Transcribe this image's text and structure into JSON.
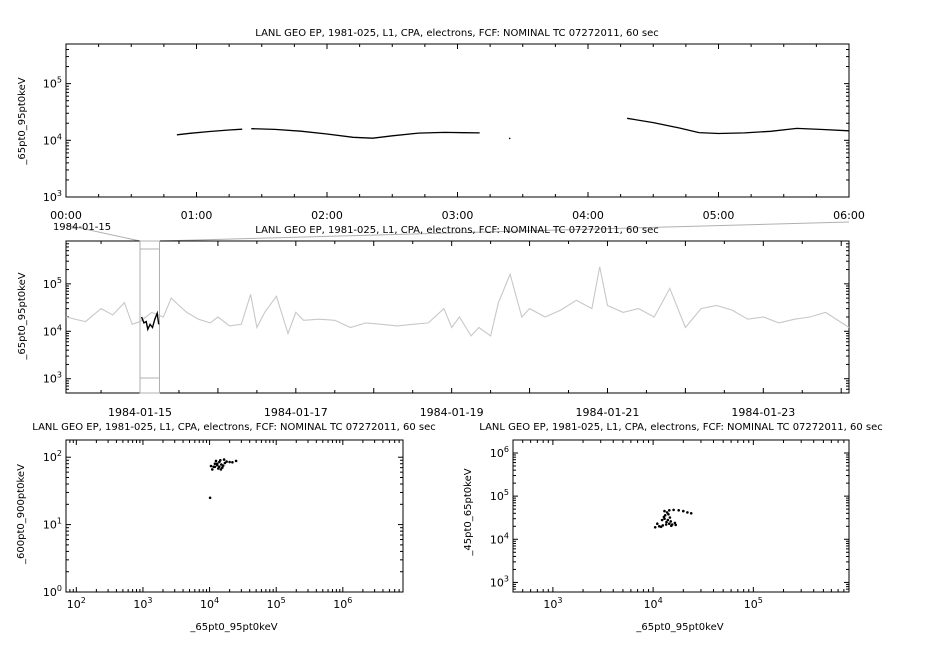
{
  "chart_data": [
    {
      "type": "line",
      "title": "LANL GEO EP, 1981-025, L1, CPA, electrons, FCF: NOMINAL TC 07272011, 60 sec",
      "ylabel": "_65pt0_95pt0keV",
      "yscale": "log",
      "ylim": [
        1000,
        500000
      ],
      "xlim_hours": [
        0,
        6
      ],
      "x_ticks": [
        "00:00",
        "01:00",
        "02:00",
        "03:00",
        "04:00",
        "05:00",
        "06:00"
      ],
      "x_date_label": "1984-01-15",
      "y_ticks": [
        {
          "base": "10",
          "exp": "5",
          "value": 100000
        },
        {
          "base": "10",
          "exp": "4",
          "value": 10000
        },
        {
          "base": "10",
          "exp": "3",
          "value": 1000
        }
      ],
      "color": "#000000",
      "series": [
        {
          "x": [
            0.85,
            0.95,
            1.1,
            1.25,
            1.35
          ],
          "y": [
            12500,
            13300,
            14300,
            15200,
            15700
          ]
        },
        {
          "x": [
            1.42,
            1.6,
            1.8,
            2.0,
            2.2,
            2.35,
            2.5,
            2.7,
            2.9,
            3.05,
            3.17
          ],
          "y": [
            16000,
            15600,
            14500,
            12900,
            11300,
            10900,
            12000,
            13400,
            13800,
            13600,
            13500
          ]
        },
        {
          "x": [
            4.3,
            4.5,
            4.7,
            4.85,
            5.0,
            5.2,
            5.4,
            5.6,
            5.8,
            6.0
          ],
          "y": [
            24500,
            20500,
            16500,
            13700,
            13200,
            13500,
            14400,
            16200,
            15500,
            14700
          ]
        }
      ]
    },
    {
      "type": "line",
      "title": "LANL GEO EP, 1981-025, L1, CPA, electrons, FCF: NOMINAL TC 07272011, 60 sec",
      "ylabel": "_65pt0_95pt0keV",
      "yscale": "log",
      "ylim": [
        500,
        800000
      ],
      "xlim_days": [
        -0.95,
        9.1
      ],
      "x_ticks": [
        "1984-01-15",
        "1984-01-17",
        "1984-01-19",
        "1984-01-21",
        "1984-01-23"
      ],
      "x_tick_days": [
        0,
        2,
        4,
        6,
        8
      ],
      "y_ticks": [
        {
          "base": "10",
          "exp": "5",
          "value": 100000
        },
        {
          "base": "10",
          "exp": "4",
          "value": 10000
        },
        {
          "base": "10",
          "exp": "3",
          "value": 1000
        }
      ],
      "color": "#c8c8c8",
      "highlight_days": [
        0,
        0.25
      ],
      "series": [
        {
          "x": [
            -0.95,
            -0.7,
            -0.5,
            -0.35,
            -0.2,
            -0.1,
            0.0,
            0.15,
            0.3,
            0.4,
            0.5,
            0.6,
            0.75,
            0.9,
            1.0,
            1.15,
            1.3,
            1.42,
            1.5,
            1.6,
            1.75,
            1.9,
            2.0,
            2.1,
            2.3,
            2.5,
            2.7,
            2.9,
            3.1,
            3.3,
            3.5,
            3.7,
            3.9,
            4.0,
            4.1,
            4.25,
            4.35,
            4.5,
            4.6,
            4.75,
            4.9,
            5.0,
            5.2,
            5.4,
            5.6,
            5.8,
            5.9,
            6.0,
            6.2,
            6.4,
            6.6,
            6.8,
            7.0,
            7.2,
            7.4,
            7.6,
            7.8,
            8.0,
            8.2,
            8.4,
            8.6,
            8.8,
            9.1
          ],
          "y": [
            20000,
            16000,
            30000,
            22000,
            40000,
            14000,
            16000,
            25000,
            20000,
            50000,
            35000,
            25000,
            18000,
            15000,
            20000,
            13000,
            14000,
            60000,
            12000,
            25000,
            55000,
            9000,
            25000,
            17000,
            18000,
            17000,
            12000,
            15000,
            14000,
            13000,
            14000,
            15000,
            30000,
            12000,
            20000,
            8000,
            12000,
            8000,
            40000,
            160000,
            20000,
            30000,
            20000,
            28000,
            45000,
            30000,
            230000,
            35000,
            25000,
            30000,
            20000,
            80000,
            12000,
            30000,
            35000,
            28000,
            18000,
            20000,
            15000,
            18000,
            20000,
            25000,
            12000
          ]
        }
      ]
    },
    {
      "type": "scatter",
      "title": "LANL GEO EP, 1981-025, L1, CPA, electrons, FCF: NOMINAL TC 07272011, 60 sec",
      "xlabel": "_65pt0_95pt0keV",
      "ylabel": "_600pt0_900pt0keV",
      "xscale": "log",
      "yscale": "log",
      "xlim": [
        70,
        8000000
      ],
      "ylim": [
        1,
        180
      ],
      "x_ticks": [
        {
          "base": "10",
          "exp": "2",
          "value": 100
        },
        {
          "base": "10",
          "exp": "3",
          "value": 1000
        },
        {
          "base": "10",
          "exp": "4",
          "value": 10000
        },
        {
          "base": "10",
          "exp": "5",
          "value": 100000
        },
        {
          "base": "10",
          "exp": "6",
          "value": 1000000
        }
      ],
      "y_ticks": [
        {
          "base": "10",
          "exp": "2",
          "value": 100
        },
        {
          "base": "10",
          "exp": "1",
          "value": 10
        },
        {
          "base": "10",
          "exp": "0",
          "value": 1
        }
      ],
      "points": [
        [
          12000,
          72
        ],
        [
          13000,
          80
        ],
        [
          14000,
          85
        ],
        [
          15000,
          78
        ],
        [
          13500,
          68
        ],
        [
          16000,
          75
        ],
        [
          12500,
          88
        ],
        [
          14500,
          90
        ],
        [
          17000,
          82
        ],
        [
          11000,
          66
        ],
        [
          10500,
          74
        ],
        [
          18000,
          86
        ],
        [
          22000,
          84
        ],
        [
          25000,
          88
        ],
        [
          14000,
          72
        ],
        [
          15500,
          70
        ],
        [
          13000,
          76
        ],
        [
          12000,
          80
        ],
        [
          16500,
          92
        ],
        [
          14800,
          66
        ],
        [
          11500,
          72
        ],
        [
          20000,
          85
        ],
        [
          10200,
          25
        ]
      ]
    },
    {
      "type": "scatter",
      "title": "LANL GEO EP, 1981-025, L1, CPA, electrons, FCF: NOMINAL TC 07272011, 60 sec",
      "xlabel": "_65pt0_95pt0keV",
      "ylabel": "_45pt0_65pt0keV",
      "xscale": "log",
      "yscale": "log",
      "xlim": [
        400,
        900000
      ],
      "ylim": [
        600,
        2000000
      ],
      "x_ticks": [
        {
          "base": "10",
          "exp": "3",
          "value": 1000
        },
        {
          "base": "10",
          "exp": "4",
          "value": 10000
        },
        {
          "base": "10",
          "exp": "5",
          "value": 100000
        }
      ],
      "y_ticks": [
        {
          "base": "10",
          "exp": "6",
          "value": 1000000
        },
        {
          "base": "10",
          "exp": "5",
          "value": 100000
        },
        {
          "base": "10",
          "exp": "4",
          "value": 10000
        },
        {
          "base": "10",
          "exp": "3",
          "value": 1000
        }
      ],
      "points": [
        [
          10500,
          19000
        ],
        [
          11500,
          20000
        ],
        [
          12500,
          21000
        ],
        [
          13500,
          22000
        ],
        [
          14500,
          23000
        ],
        [
          15500,
          22000
        ],
        [
          16500,
          24000
        ],
        [
          15000,
          26000
        ],
        [
          14000,
          28000
        ],
        [
          13000,
          30000
        ],
        [
          12800,
          33000
        ],
        [
          13200,
          36000
        ],
        [
          14200,
          38000
        ],
        [
          13800,
          42000
        ],
        [
          13000,
          45000
        ],
        [
          14500,
          47000
        ],
        [
          16000,
          48000
        ],
        [
          18000,
          47000
        ],
        [
          20000,
          45000
        ],
        [
          22000,
          42000
        ],
        [
          24000,
          40000
        ],
        [
          12000,
          19500
        ],
        [
          15200,
          20500
        ],
        [
          16800,
          21500
        ],
        [
          13600,
          25000
        ],
        [
          14700,
          32000
        ],
        [
          12300,
          28000
        ],
        [
          11000,
          23000
        ]
      ]
    }
  ]
}
